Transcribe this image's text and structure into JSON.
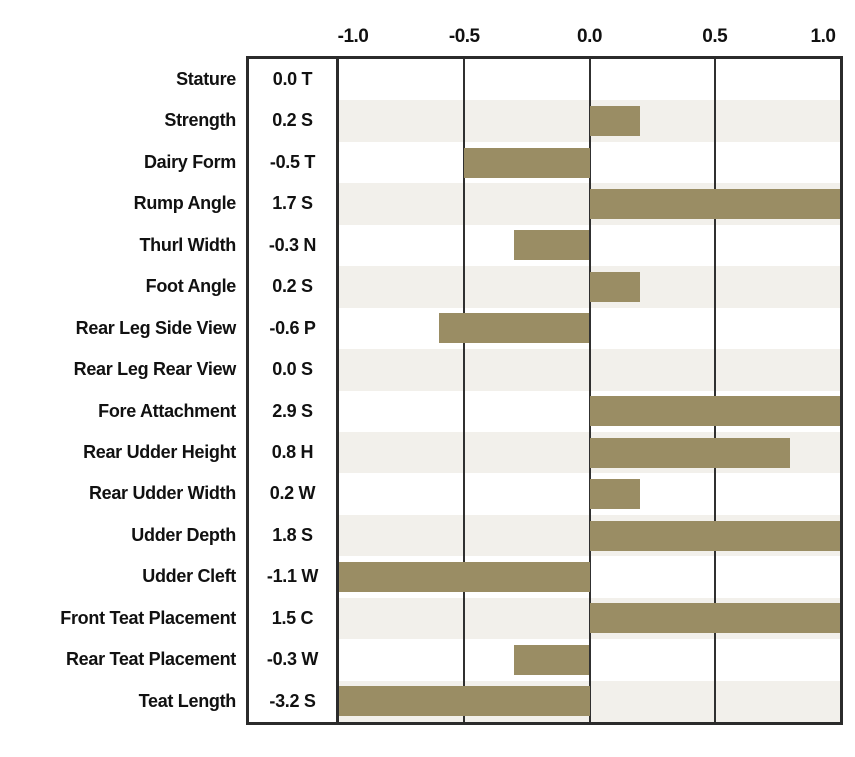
{
  "chart_data": {
    "type": "bar",
    "orientation": "horizontal",
    "title": "",
    "axis": {
      "position": "top",
      "xlim": [
        -1.0,
        1.0
      ],
      "ticks": [
        -1.0,
        -0.5,
        0.0,
        0.5,
        1.0
      ],
      "tick_labels": [
        "-1.0",
        "-0.5",
        "0.0",
        "0.5",
        "1.0"
      ],
      "grid": true
    },
    "rows": [
      {
        "trait": "Stature",
        "value": 0.0,
        "display": "0.0 T"
      },
      {
        "trait": "Strength",
        "value": 0.2,
        "display": "0.2 S"
      },
      {
        "trait": "Dairy Form",
        "value": -0.5,
        "display": "-0.5 T"
      },
      {
        "trait": "Rump Angle",
        "value": 1.7,
        "display": "1.7 S"
      },
      {
        "trait": "Thurl Width",
        "value": -0.3,
        "display": "-0.3 N"
      },
      {
        "trait": "Foot Angle",
        "value": 0.2,
        "display": "0.2 S"
      },
      {
        "trait": "Rear Leg Side View",
        "value": -0.6,
        "display": "-0.6 P"
      },
      {
        "trait": "Rear Leg Rear View",
        "value": 0.0,
        "display": "0.0 S"
      },
      {
        "trait": "Fore Attachment",
        "value": 2.9,
        "display": "2.9 S"
      },
      {
        "trait": "Rear Udder Height",
        "value": 0.8,
        "display": "0.8 H"
      },
      {
        "trait": "Rear Udder Width",
        "value": 0.2,
        "display": "0.2 W"
      },
      {
        "trait": "Udder Depth",
        "value": 1.8,
        "display": "1.8 S"
      },
      {
        "trait": "Udder Cleft",
        "value": -1.1,
        "display": "-1.1 W"
      },
      {
        "trait": "Front Teat Placement",
        "value": 1.5,
        "display": "1.5 C"
      },
      {
        "trait": "Rear Teat Placement",
        "value": -0.3,
        "display": "-0.3 W"
      },
      {
        "trait": "Teat Length",
        "value": -3.2,
        "display": "-3.2 S"
      }
    ],
    "colors": {
      "bar": "#9A8D64",
      "band": "#F2F0EB",
      "frame": "#2B2B2B",
      "grid": "#303030",
      "text": "#111111",
      "background": "#FFFFFF"
    }
  }
}
